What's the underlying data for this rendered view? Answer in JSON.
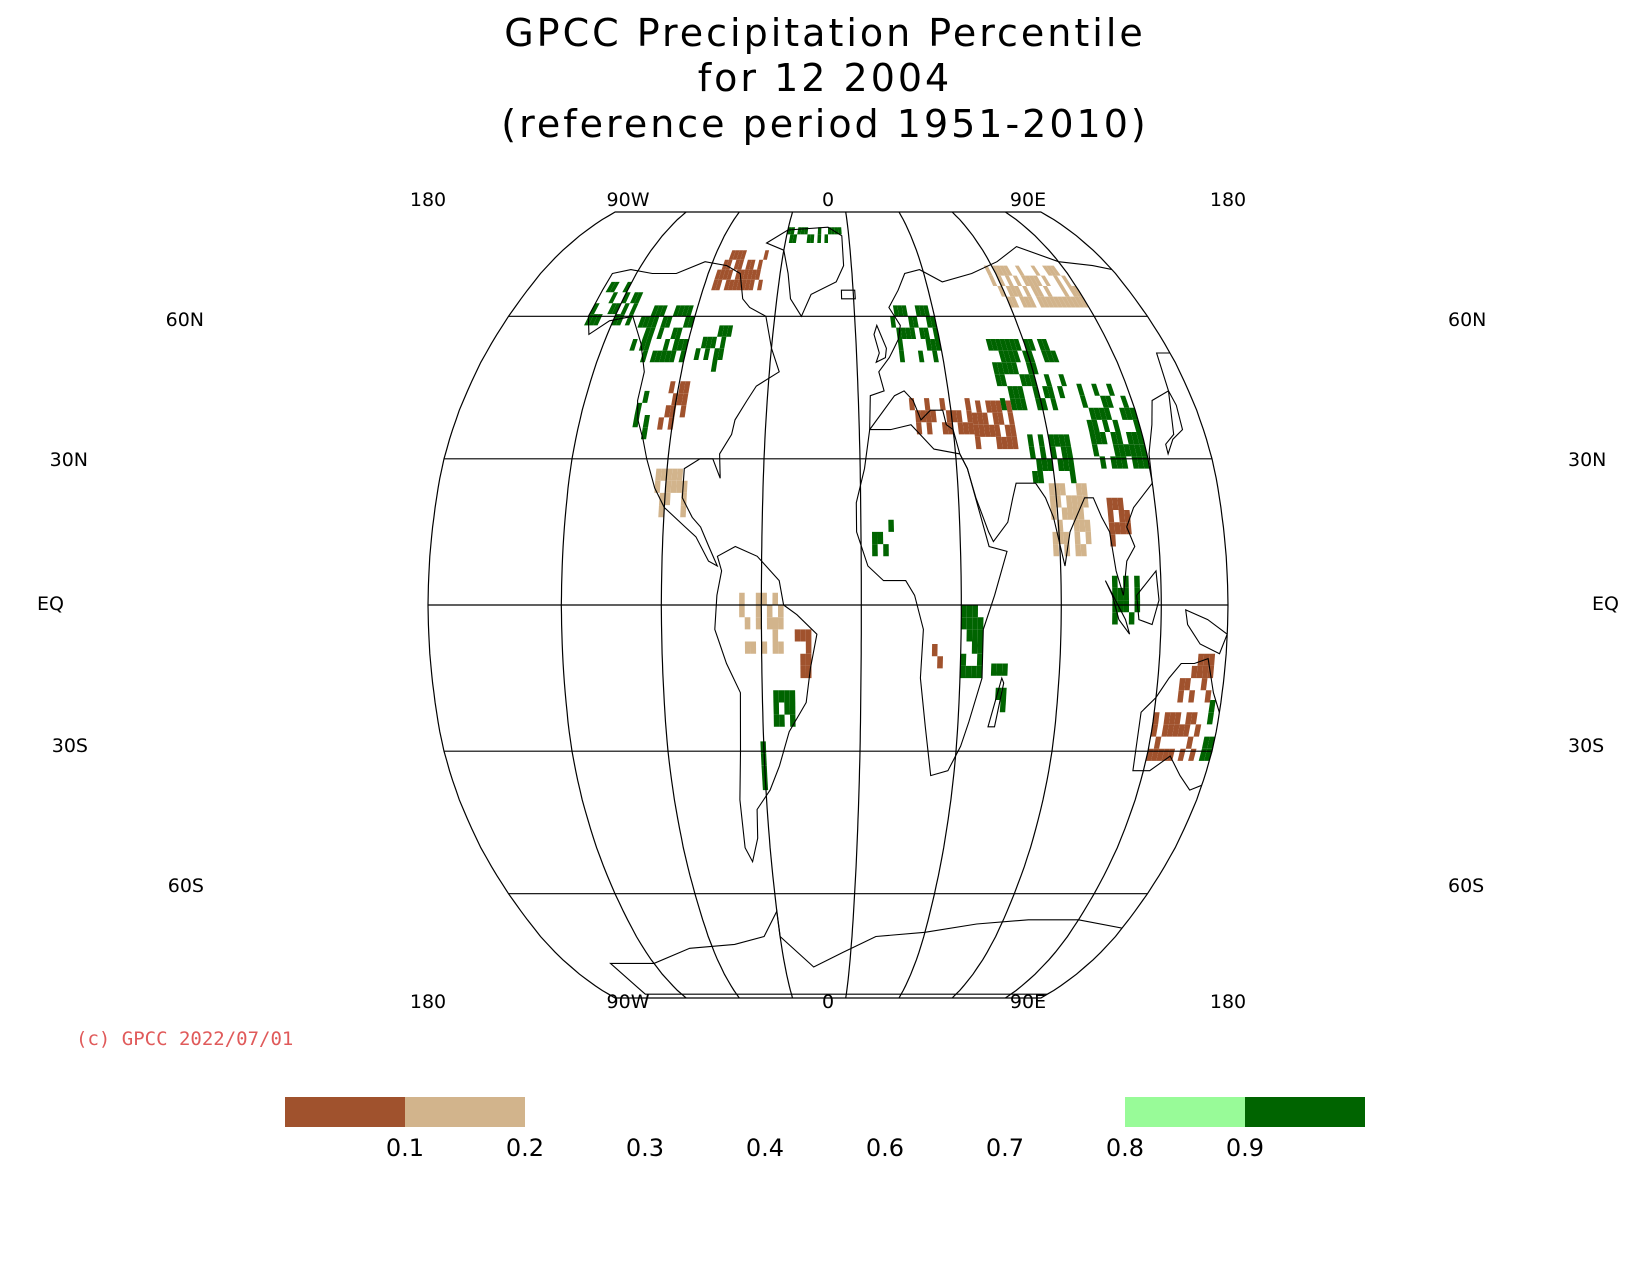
{
  "title": {
    "line1": "GPCC Precipitation Percentile",
    "line2": "for 12 2004",
    "line3": "(reference period 1951-2010)"
  },
  "axes": {
    "top_longitudes": [
      "180",
      "90W",
      "0",
      "90E",
      "180"
    ],
    "bottom_longitudes": [
      "180",
      "90W",
      "0",
      "90E",
      "180"
    ],
    "latitudes_left": [
      "60N",
      "30N",
      "EQ",
      "30S",
      "60S"
    ],
    "latitudes_right": [
      "60N",
      "30N",
      "EQ",
      "30S",
      "60S"
    ]
  },
  "copyright": "(c) GPCC 2022/07/01",
  "legend": {
    "bins": [
      {
        "color": "#a0522d"
      },
      {
        "color": "#d2b48c"
      },
      {
        "color": "#ffffff"
      },
      {
        "color": "#ffffff"
      },
      {
        "color": "#ffffff"
      },
      {
        "color": "#ffffff"
      },
      {
        "color": "#ffffff"
      },
      {
        "color": "#98fb98"
      },
      {
        "color": "#006400"
      }
    ],
    "labels": [
      "0.1",
      "0.2",
      "0.3",
      "0.4",
      "0.6",
      "0.7",
      "0.8",
      "0.9"
    ]
  },
  "colors": {
    "very_dry": "#a0522d",
    "dry": "#d2b48c",
    "wet": "#98fb98",
    "very_wet": "#006400",
    "copyright": "#e05a5a"
  },
  "chart_data": {
    "type": "heatmap",
    "projection": "robinson",
    "lon_range": [
      -210,
      150
    ],
    "lat_range": [
      -90,
      90
    ],
    "categories": [
      "very_dry",
      "dry",
      "wet",
      "very_wet"
    ],
    "regions": [
      {
        "name": "Alaska",
        "category": "very_wet",
        "lon": [
          -165,
          -140
        ],
        "lat": [
          58,
          68
        ]
      },
      {
        "name": "NW Canada",
        "category": "very_wet",
        "lon": [
          -135,
          -105
        ],
        "lat": [
          50,
          62
        ]
      },
      {
        "name": "Central Canada",
        "category": "very_wet",
        "lon": [
          -100,
          -80
        ],
        "lat": [
          48,
          58
        ]
      },
      {
        "name": "Canadian Arctic",
        "category": "very_dry",
        "lon": [
          -100,
          -70
        ],
        "lat": [
          66,
          75
        ]
      },
      {
        "name": "Greenland north",
        "category": "very_wet",
        "lon": [
          -60,
          -20
        ],
        "lat": [
          78,
          83
        ]
      },
      {
        "name": "US Rockies",
        "category": "very_dry",
        "lon": [
          -112,
          -100
        ],
        "lat": [
          36,
          44
        ]
      },
      {
        "name": "US West Coast",
        "category": "very_wet",
        "lon": [
          -124,
          -118
        ],
        "lat": [
          34,
          44
        ]
      },
      {
        "name": "Mexico",
        "category": "dry",
        "lon": [
          -110,
          -95
        ],
        "lat": [
          18,
          28
        ]
      },
      {
        "name": "Amazon",
        "category": "dry",
        "lon": [
          -70,
          -50
        ],
        "lat": [
          -10,
          2
        ]
      },
      {
        "name": "NE Brazil",
        "category": "very_dry",
        "lon": [
          -45,
          -38
        ],
        "lat": [
          -15,
          -5
        ]
      },
      {
        "name": "Southern Brazil",
        "category": "very_wet",
        "lon": [
          -55,
          -45
        ],
        "lat": [
          -25,
          -15
        ]
      },
      {
        "name": "Argentina",
        "category": "very_wet",
        "lon": [
          -64,
          -56
        ],
        "lat": [
          -38,
          -30
        ]
      },
      {
        "name": "Europe",
        "category": "very_wet",
        "lon": [
          5,
          30
        ],
        "lat": [
          50,
          62
        ]
      },
      {
        "name": "Mediterranean",
        "category": "very_dry",
        "lon": [
          10,
          40
        ],
        "lat": [
          35,
          42
        ]
      },
      {
        "name": "Middle East",
        "category": "very_dry",
        "lon": [
          40,
          60
        ],
        "lat": [
          32,
          40
        ]
      },
      {
        "name": "West Africa",
        "category": "very_wet",
        "lon": [
          -10,
          0
        ],
        "lat": [
          10,
          16
        ]
      },
      {
        "name": "East Africa",
        "category": "very_wet",
        "lon": [
          30,
          40
        ],
        "lat": [
          -15,
          0
        ]
      },
      {
        "name": "Angola",
        "category": "very_dry",
        "lon": [
          12,
          20
        ],
        "lat": [
          -18,
          -8
        ]
      },
      {
        "name": "Madagascar",
        "category": "very_wet",
        "lon": [
          44,
          50
        ],
        "lat": [
          -22,
          -14
        ]
      },
      {
        "name": "Central Asia",
        "category": "very_wet",
        "lon": [
          55,
          90
        ],
        "lat": [
          40,
          55
        ]
      },
      {
        "name": "Siberia",
        "category": "dry",
        "lon": [
          70,
          120
        ],
        "lat": [
          62,
          70
        ]
      },
      {
        "name": "China",
        "category": "very_wet",
        "lon": [
          95,
          120
        ],
        "lat": [
          28,
          45
        ]
      },
      {
        "name": "Pakistan/India north",
        "category": "very_wet",
        "lon": [
          65,
          85
        ],
        "lat": [
          25,
          35
        ]
      },
      {
        "name": "India",
        "category": "dry",
        "lon": [
          72,
          88
        ],
        "lat": [
          10,
          25
        ]
      },
      {
        "name": "Indochina",
        "category": "very_dry",
        "lon": [
          98,
          108
        ],
        "lat": [
          12,
          20
        ]
      },
      {
        "name": "Sumatra/Malaysia",
        "category": "very_wet",
        "lon": [
          98,
          110
        ],
        "lat": [
          -4,
          6
        ]
      },
      {
        "name": "Northern Australia",
        "category": "very_dry",
        "lon": [
          130,
          145
        ],
        "lat": [
          -20,
          -12
        ]
      },
      {
        "name": "Central Australia",
        "category": "very_dry",
        "lon": [
          120,
          142
        ],
        "lat": [
          -32,
          -22
        ]
      },
      {
        "name": "Eastern Australia",
        "category": "very_wet",
        "lon": [
          145,
          152
        ],
        "lat": [
          -32,
          -20
        ]
      },
      {
        "name": "New Zealand",
        "category": "very_wet",
        "lon": [
          168,
          178
        ],
        "lat": [
          -45,
          -36
        ]
      }
    ]
  }
}
